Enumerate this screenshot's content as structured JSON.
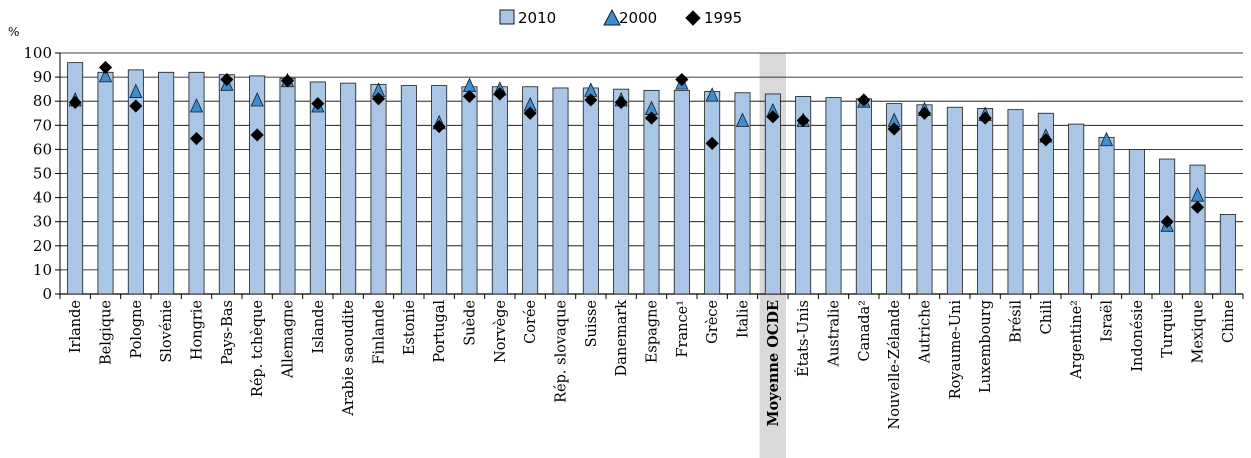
{
  "chart_data": {
    "type": "bar",
    "ylabel": "%",
    "ylim": [
      0,
      100
    ],
    "yticks": [
      "0",
      "10",
      "20",
      "30",
      "40",
      "50",
      "60",
      "70",
      "80",
      "90",
      "100"
    ],
    "grid": true,
    "legend_position": "top-center",
    "highlight_category": "Moyenne OCDE",
    "colors": {
      "bar": "#a9c6e6",
      "bar_stroke": "#1a1a1a",
      "triangle": "#3d8ed0",
      "diamond": "#000000",
      "highlight": "#d9d9d9"
    },
    "categories": [
      "Irlande",
      "Belgique",
      "Pologne",
      "Slovénie",
      "Hongrie",
      "Pays-Bas",
      "Rép. tchèque",
      "Allemagne",
      "Islande",
      "Arabie saoudite",
      "Finlande",
      "Estonie",
      "Portugal",
      "Suède",
      "Norvège",
      "Corée",
      "Rép. slovaque",
      "Suisse",
      "Danemark",
      "Espagne",
      "France¹",
      "Grèce",
      "Italie",
      "Moyenne OCDE",
      "États-Unis",
      "Australie",
      "Canada²",
      "Nouvelle-Zélande",
      "Autriche",
      "Royaume-Uni",
      "Luxembourg",
      "Brésil",
      "Chili",
      "Argentine²",
      "Israël",
      "Indonésie",
      "Turquie",
      "Mexique",
      "Chine"
    ],
    "series": [
      {
        "name": "2010",
        "marker": "bar",
        "values": [
          96,
          92,
          93,
          92,
          92,
          91,
          90.5,
          89.5,
          88,
          87.5,
          87,
          86.5,
          86.5,
          86,
          86,
          86,
          85.5,
          85.5,
          85,
          84.5,
          84.5,
          84,
          83.5,
          83,
          82,
          81.5,
          81,
          79,
          78.5,
          77.5,
          77,
          76.5,
          75,
          70.5,
          65,
          60,
          56,
          53.5,
          33
        ]
      },
      {
        "name": "2000",
        "marker": "triangle",
        "values": [
          80.5,
          90.5,
          84,
          null,
          78,
          87,
          80.5,
          88.5,
          78,
          null,
          84.5,
          null,
          71,
          86.5,
          85,
          78.5,
          null,
          84.5,
          80.5,
          77,
          87.5,
          82.5,
          72,
          76,
          72,
          null,
          80,
          72,
          76.5,
          null,
          74.5,
          null,
          65.5,
          null,
          64,
          null,
          28.5,
          41,
          null
        ]
      },
      {
        "name": "1995",
        "marker": "diamond",
        "values": [
          79.5,
          94,
          78,
          null,
          64.5,
          89,
          66,
          88.5,
          79,
          null,
          81,
          null,
          69.5,
          82,
          83,
          75,
          null,
          80.5,
          79.5,
          73,
          89,
          62.5,
          null,
          73.5,
          72,
          null,
          80.5,
          68.5,
          75,
          null,
          73,
          null,
          64,
          null,
          null,
          null,
          30,
          36,
          null
        ]
      }
    ]
  }
}
